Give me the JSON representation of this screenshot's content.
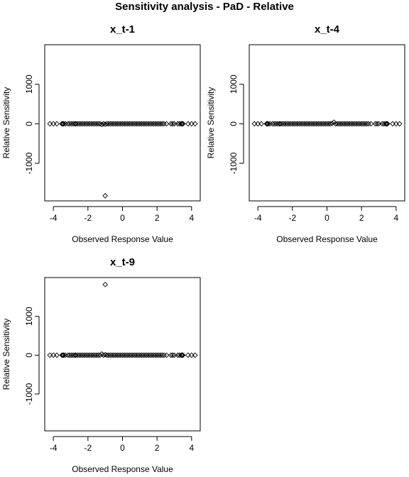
{
  "page": {
    "title": "Sensitivity analysis - PaD - Relative"
  },
  "chart_data": [
    {
      "type": "scatter",
      "title": "x_t-1",
      "xlabel": "Observed Response Value",
      "ylabel": "Relative Sensitivity",
      "xlim": [
        -4.5,
        4.5
      ],
      "ylim": [
        -1950,
        2000
      ],
      "xticks": [
        -4,
        -2,
        0,
        2,
        4
      ],
      "yticks": [
        -1000,
        0,
        1000
      ],
      "x": [
        -4.2,
        -4.0,
        -3.8,
        -3.5,
        -3.45,
        -3.4,
        -3.3,
        -3.15,
        -3.05,
        -2.95,
        -2.85,
        -2.75,
        -2.7,
        -2.6,
        -2.5,
        -2.4,
        -2.3,
        -2.2,
        -2.1,
        -2.0,
        -1.9,
        -1.8,
        -1.7,
        -1.6,
        -1.5,
        -1.4,
        -1.3,
        -1.2,
        -1.1,
        -1.0,
        -0.9,
        -0.8,
        -0.7,
        -0.6,
        -0.5,
        -0.4,
        -0.3,
        -0.2,
        -0.1,
        0.0,
        0.1,
        0.2,
        0.3,
        0.4,
        0.5,
        0.6,
        0.7,
        0.8,
        0.9,
        1.0,
        1.1,
        1.2,
        1.3,
        1.4,
        1.5,
        1.6,
        1.7,
        1.8,
        1.9,
        2.0,
        2.1,
        2.2,
        2.3,
        2.4,
        2.55,
        2.8,
        2.9,
        3.0,
        3.2,
        3.3,
        3.4,
        3.45,
        3.5,
        3.8,
        4.0,
        4.2,
        -1.0
      ],
      "y": [
        0,
        0,
        0,
        0,
        0,
        0,
        0,
        0,
        0,
        0,
        0,
        0,
        0,
        0,
        0,
        0,
        0,
        0,
        0,
        0,
        0,
        0,
        0,
        0,
        0,
        0,
        0,
        -15,
        0,
        -10,
        0,
        0,
        0,
        0,
        0,
        0,
        0,
        0,
        0,
        0,
        0,
        0,
        0,
        0,
        0,
        0,
        0,
        0,
        0,
        0,
        0,
        0,
        0,
        0,
        0,
        0,
        0,
        0,
        0,
        0,
        0,
        0,
        0,
        0,
        0,
        0,
        0,
        0,
        0,
        0,
        0,
        0,
        0,
        0,
        0,
        0,
        -1820
      ]
    },
    {
      "type": "scatter",
      "title": "x_t-4",
      "xlabel": "Observed Response Value",
      "ylabel": "Relative Sensitivity",
      "xlim": [
        -4.5,
        4.5
      ],
      "ylim": [
        -1950,
        2000
      ],
      "xticks": [
        -4,
        -2,
        0,
        2,
        4
      ],
      "yticks": [
        -1000,
        0,
        1000
      ],
      "x": [
        -4.2,
        -4.0,
        -3.8,
        -3.5,
        -3.45,
        -3.4,
        -3.3,
        -3.15,
        -3.05,
        -2.95,
        -2.85,
        -2.75,
        -2.7,
        -2.6,
        -2.5,
        -2.4,
        -2.3,
        -2.2,
        -2.1,
        -2.0,
        -1.9,
        -1.8,
        -1.7,
        -1.6,
        -1.5,
        -1.4,
        -1.3,
        -1.2,
        -1.1,
        -1.0,
        -0.9,
        -0.8,
        -0.7,
        -0.6,
        -0.5,
        -0.4,
        -0.3,
        -0.2,
        -0.1,
        0.0,
        0.1,
        0.2,
        0.3,
        0.4,
        0.5,
        0.6,
        0.7,
        0.8,
        0.9,
        1.0,
        1.1,
        1.2,
        1.3,
        1.4,
        1.5,
        1.6,
        1.7,
        1.8,
        1.9,
        2.0,
        2.1,
        2.2,
        2.3,
        2.4,
        2.55,
        2.8,
        2.9,
        3.0,
        3.2,
        3.3,
        3.4,
        3.45,
        3.5,
        3.8,
        4.0,
        4.2
      ],
      "y": [
        0,
        0,
        0,
        0,
        0,
        0,
        0,
        0,
        0,
        0,
        0,
        0,
        0,
        0,
        0,
        0,
        0,
        0,
        0,
        0,
        0,
        0,
        0,
        0,
        0,
        0,
        0,
        0,
        0,
        0,
        0,
        0,
        0,
        0,
        0,
        0,
        0,
        0,
        0,
        0,
        0,
        0,
        10,
        40,
        0,
        0,
        0,
        0,
        0,
        0,
        0,
        0,
        0,
        0,
        0,
        0,
        0,
        0,
        0,
        0,
        0,
        0,
        0,
        0,
        0,
        0,
        0,
        0,
        0,
        0,
        0,
        0,
        0,
        0,
        0,
        0
      ]
    },
    {
      "type": "scatter",
      "title": "x_t-9",
      "xlabel": "Observed Response Value",
      "ylabel": "Relative Sensitivity",
      "xlim": [
        -4.5,
        4.5
      ],
      "ylim": [
        -1950,
        2000
      ],
      "xticks": [
        -4,
        -2,
        0,
        2,
        4
      ],
      "yticks": [
        -1000,
        0,
        1000
      ],
      "x": [
        -4.2,
        -4.0,
        -3.8,
        -3.5,
        -3.45,
        -3.4,
        -3.3,
        -3.15,
        -3.05,
        -2.95,
        -2.85,
        -2.75,
        -2.7,
        -2.6,
        -2.5,
        -2.4,
        -2.3,
        -2.2,
        -2.1,
        -2.0,
        -1.9,
        -1.8,
        -1.7,
        -1.6,
        -1.5,
        -1.4,
        -1.3,
        -1.2,
        -1.1,
        -1.0,
        -0.9,
        -0.8,
        -0.7,
        -0.6,
        -0.5,
        -0.4,
        -0.3,
        -0.2,
        -0.1,
        0.0,
        0.1,
        0.2,
        0.3,
        0.4,
        0.5,
        0.6,
        0.7,
        0.8,
        0.9,
        1.0,
        1.1,
        1.2,
        1.3,
        1.4,
        1.5,
        1.6,
        1.7,
        1.8,
        1.9,
        2.0,
        2.1,
        2.2,
        2.3,
        2.4,
        2.55,
        2.8,
        2.9,
        3.0,
        3.2,
        3.3,
        3.4,
        3.45,
        3.5,
        3.8,
        4.0,
        4.2,
        -1.0
      ],
      "y": [
        0,
        0,
        0,
        0,
        0,
        0,
        0,
        0,
        0,
        0,
        0,
        0,
        0,
        0,
        0,
        0,
        0,
        0,
        0,
        0,
        0,
        0,
        0,
        0,
        0,
        0,
        0,
        30,
        0,
        10,
        0,
        0,
        0,
        0,
        0,
        0,
        0,
        0,
        0,
        0,
        0,
        0,
        0,
        0,
        0,
        0,
        0,
        0,
        0,
        0,
        0,
        0,
        0,
        0,
        0,
        0,
        0,
        0,
        0,
        0,
        0,
        0,
        0,
        0,
        0,
        0,
        0,
        0,
        0,
        0,
        0,
        0,
        0,
        0,
        0,
        0,
        1820
      ]
    }
  ]
}
